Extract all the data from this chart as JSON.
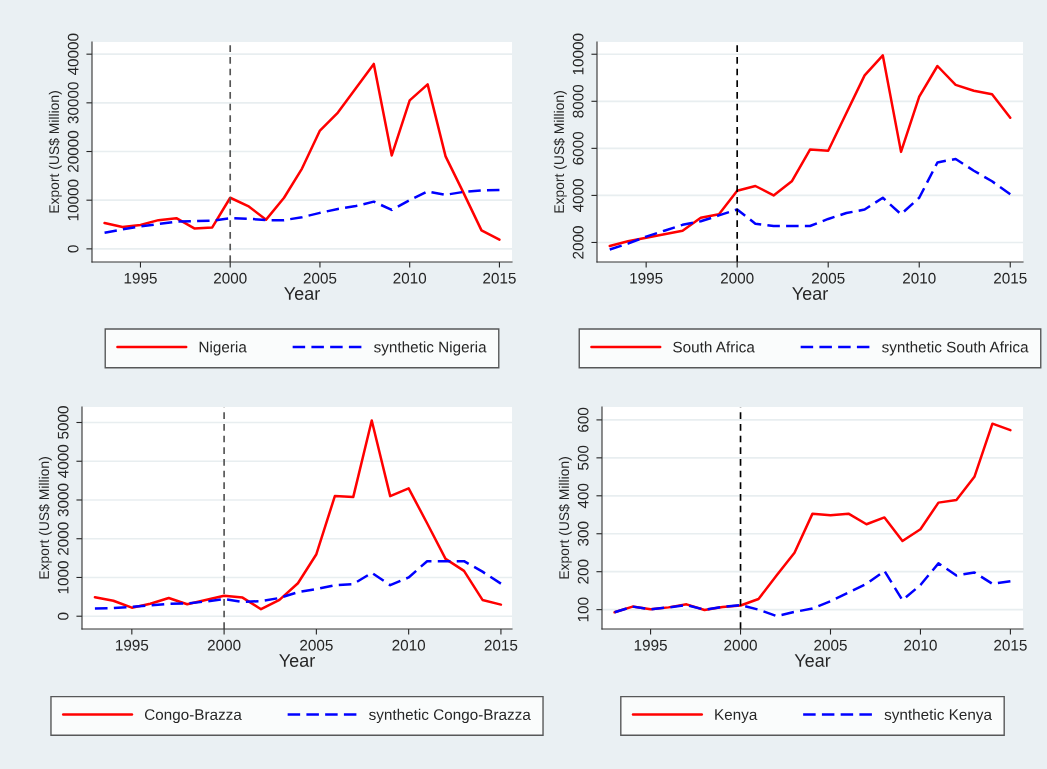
{
  "chart_data": [
    {
      "type": "line",
      "xlabel": "Year",
      "ylabel": "Export (US$ Million)",
      "x": [
        1993,
        1994,
        1995,
        1996,
        1997,
        1998,
        1999,
        2000,
        2001,
        2002,
        2003,
        2004,
        2005,
        2006,
        2007,
        2008,
        2009,
        2010,
        2011,
        2012,
        2013,
        2014,
        2015
      ],
      "series": [
        {
          "name": "Nigeria",
          "color": "#ff0000",
          "line_style": "solid",
          "values": [
            5300,
            4500,
            4900,
            5900,
            6300,
            4200,
            4400,
            10500,
            8800,
            6000,
            10500,
            16500,
            24300,
            28000,
            33000,
            38000,
            19200,
            30500,
            33800,
            19000,
            11500,
            3800,
            1900
          ]
        },
        {
          "name": "synthetic Nigeria",
          "color": "#0000ff",
          "line_style": "dashed",
          "values": [
            3300,
            4000,
            4600,
            5100,
            5600,
            5700,
            5800,
            6300,
            6200,
            5900,
            5900,
            6500,
            7400,
            8200,
            8800,
            9700,
            8000,
            10000,
            11800,
            11100,
            11700,
            12000,
            12100
          ]
        }
      ],
      "xlim": [
        1992.3,
        2015.7
      ],
      "xticks": [
        1995,
        2000,
        2005,
        2010,
        2015
      ],
      "ylim": [
        -2700,
        42500
      ],
      "yticks": [
        0,
        10000,
        20000,
        30000,
        40000
      ],
      "ref_lines": [
        {
          "axis": "x",
          "value": 2000,
          "color": "#555555",
          "line_style": "dashed"
        }
      ],
      "grid": "y",
      "legend": "bottom"
    },
    {
      "type": "line",
      "xlabel": "Year",
      "ylabel": "Export (US$ Million)",
      "x": [
        1993,
        1994,
        1995,
        1996,
        1997,
        1998,
        1999,
        2000,
        2001,
        2002,
        2003,
        2004,
        2005,
        2006,
        2007,
        2008,
        2009,
        2010,
        2011,
        2012,
        2013,
        2014,
        2015
      ],
      "series": [
        {
          "name": "South Africa",
          "color": "#ff0000",
          "line_style": "solid",
          "values": [
            1850,
            2050,
            2200,
            2350,
            2500,
            3050,
            3200,
            4200,
            4400,
            4000,
            4600,
            5950,
            5900,
            7500,
            9100,
            9950,
            5850,
            8200,
            9500,
            8700,
            8450,
            8300,
            7300
          ]
        },
        {
          "name": "synthetic South Africa",
          "color": "#0000ff",
          "line_style": "dashed",
          "values": [
            1700,
            1950,
            2250,
            2500,
            2750,
            2900,
            3150,
            3400,
            2800,
            2700,
            2700,
            2700,
            3000,
            3250,
            3400,
            3900,
            3200,
            3900,
            5400,
            5550,
            5050,
            4600,
            4050
          ]
        }
      ],
      "xlim": [
        1992.3,
        2015.7
      ],
      "xticks": [
        1995,
        2000,
        2005,
        2010,
        2015
      ],
      "ylim": [
        1170,
        10520
      ],
      "yticks": [
        2000,
        4000,
        6000,
        8000,
        10000
      ],
      "ref_lines": [
        {
          "axis": "x",
          "value": 2000,
          "color": "#000000",
          "line_style": "dashed"
        }
      ],
      "grid": "y",
      "legend": "bottom"
    },
    {
      "type": "line",
      "xlabel": "Year",
      "ylabel": "Export (US$ Million)",
      "x": [
        1993,
        1994,
        1995,
        1996,
        1997,
        1998,
        1999,
        2000,
        2001,
        2002,
        2003,
        2004,
        2005,
        2006,
        2007,
        2008,
        2009,
        2010,
        2011,
        2012,
        2013,
        2014,
        2015
      ],
      "series": [
        {
          "name": "Congo-Brazza",
          "color": "#ff0000",
          "line_style": "solid",
          "values": [
            490,
            400,
            220,
            320,
            470,
            310,
            420,
            530,
            480,
            180,
            420,
            850,
            1600,
            3100,
            3080,
            5050,
            3100,
            3300,
            2400,
            1480,
            1170,
            420,
            300
          ]
        },
        {
          "name": "synthetic Congo-Brazza",
          "color": "#0000ff",
          "line_style": "dashed",
          "values": [
            200,
            210,
            240,
            280,
            320,
            330,
            380,
            440,
            370,
            390,
            470,
            620,
            700,
            800,
            830,
            1120,
            800,
            1000,
            1420,
            1420,
            1420,
            1150,
            840
          ]
        }
      ],
      "xlim": [
        1992.3,
        2015.6
      ],
      "xticks": [
        1995,
        2000,
        2005,
        2010,
        2015
      ],
      "ylim": [
        -330,
        5400
      ],
      "yticks": [
        0,
        1000,
        2000,
        3000,
        4000,
        5000
      ],
      "ref_lines": [
        {
          "axis": "x",
          "value": 2000,
          "color": "#555555",
          "line_style": "dashed"
        }
      ],
      "grid": "y",
      "legend": "bottom"
    },
    {
      "type": "line",
      "xlabel": "Year",
      "ylabel": "Export (US$ Million)",
      "x": [
        1993,
        1994,
        1995,
        1996,
        1997,
        1998,
        1999,
        2000,
        2001,
        2002,
        2003,
        2004,
        2005,
        2006,
        2007,
        2008,
        2009,
        2010,
        2011,
        2012,
        2013,
        2014,
        2015
      ],
      "series": [
        {
          "name": "Kenya",
          "color": "#ff0000",
          "line_style": "solid",
          "values": [
            93,
            108,
            101,
            106,
            114,
            99,
            107,
            111,
            128,
            190,
            250,
            353,
            349,
            353,
            325,
            343,
            281,
            312,
            382,
            389,
            450,
            590,
            573
          ]
        },
        {
          "name": "synthetic Kenya",
          "color": "#0000ff",
          "line_style": "dashed",
          "values": [
            93,
            108,
            101,
            106,
            112,
            100,
            107,
            112,
            100,
            83,
            94,
            103,
            122,
            145,
            168,
            202,
            125,
            165,
            222,
            190,
            198,
            168,
            175
          ]
        }
      ],
      "xlim": [
        1992.3,
        2015.7
      ],
      "xticks": [
        1995,
        2000,
        2005,
        2010,
        2015
      ],
      "ylim": [
        49,
        634
      ],
      "yticks": [
        100,
        200,
        300,
        400,
        500,
        600
      ],
      "ref_lines": [
        {
          "axis": "x",
          "value": 2000,
          "color": "#000000",
          "line_style": "dashed"
        }
      ],
      "grid": "y",
      "legend": "bottom"
    }
  ]
}
